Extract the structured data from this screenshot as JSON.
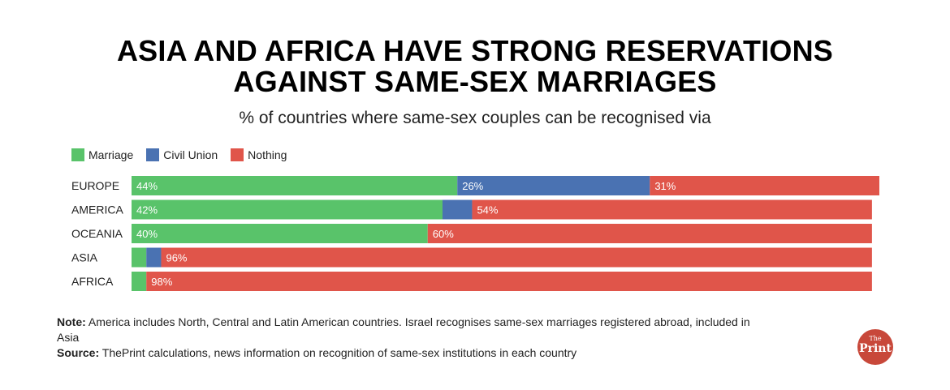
{
  "colors": {
    "marriage": "#59c36a",
    "civil_union": "#4a72b2",
    "nothing": "#e0554a"
  },
  "chart_data": {
    "type": "bar",
    "orientation": "horizontal",
    "stacked": true,
    "title_line1": "ASIA AND AFRICA HAVE STRONG RESERVATIONS",
    "title_line2": "AGAINST SAME-SEX MARRIAGES",
    "subtitle": "% of countries where same-sex couples can be recognised via",
    "xlim": [
      0,
      101
    ],
    "legend": [
      "Marriage",
      "Civil Union",
      "Nothing"
    ],
    "categories": [
      "EUROPE",
      "AMERICA",
      "OCEANIA",
      "ASIA",
      "AFRICA"
    ],
    "series": [
      {
        "name": "Marriage",
        "values": [
          44,
          42,
          40,
          2,
          2
        ],
        "labels": [
          "44%",
          "42%",
          "40%",
          "",
          ""
        ]
      },
      {
        "name": "Civil Union",
        "values": [
          26,
          4,
          0,
          2,
          0
        ],
        "labels": [
          "26%",
          "",
          "",
          "",
          ""
        ]
      },
      {
        "name": "Nothing",
        "values": [
          31,
          54,
          60,
          96,
          98
        ],
        "labels": [
          "31%",
          "54%",
          "60%",
          "96%",
          "98%"
        ]
      }
    ]
  },
  "notes": {
    "note_label": "Note:",
    "note_text": " America includes North, Central and Latin American countries. Israel recognises same-sex marriages registered abroad, included in Asia",
    "source_label": "Source:",
    "source_text": " ThePrint calculations, news information on recognition of same-sex institutions in each country"
  },
  "logo": {
    "line1": "The",
    "line2": "Print"
  }
}
